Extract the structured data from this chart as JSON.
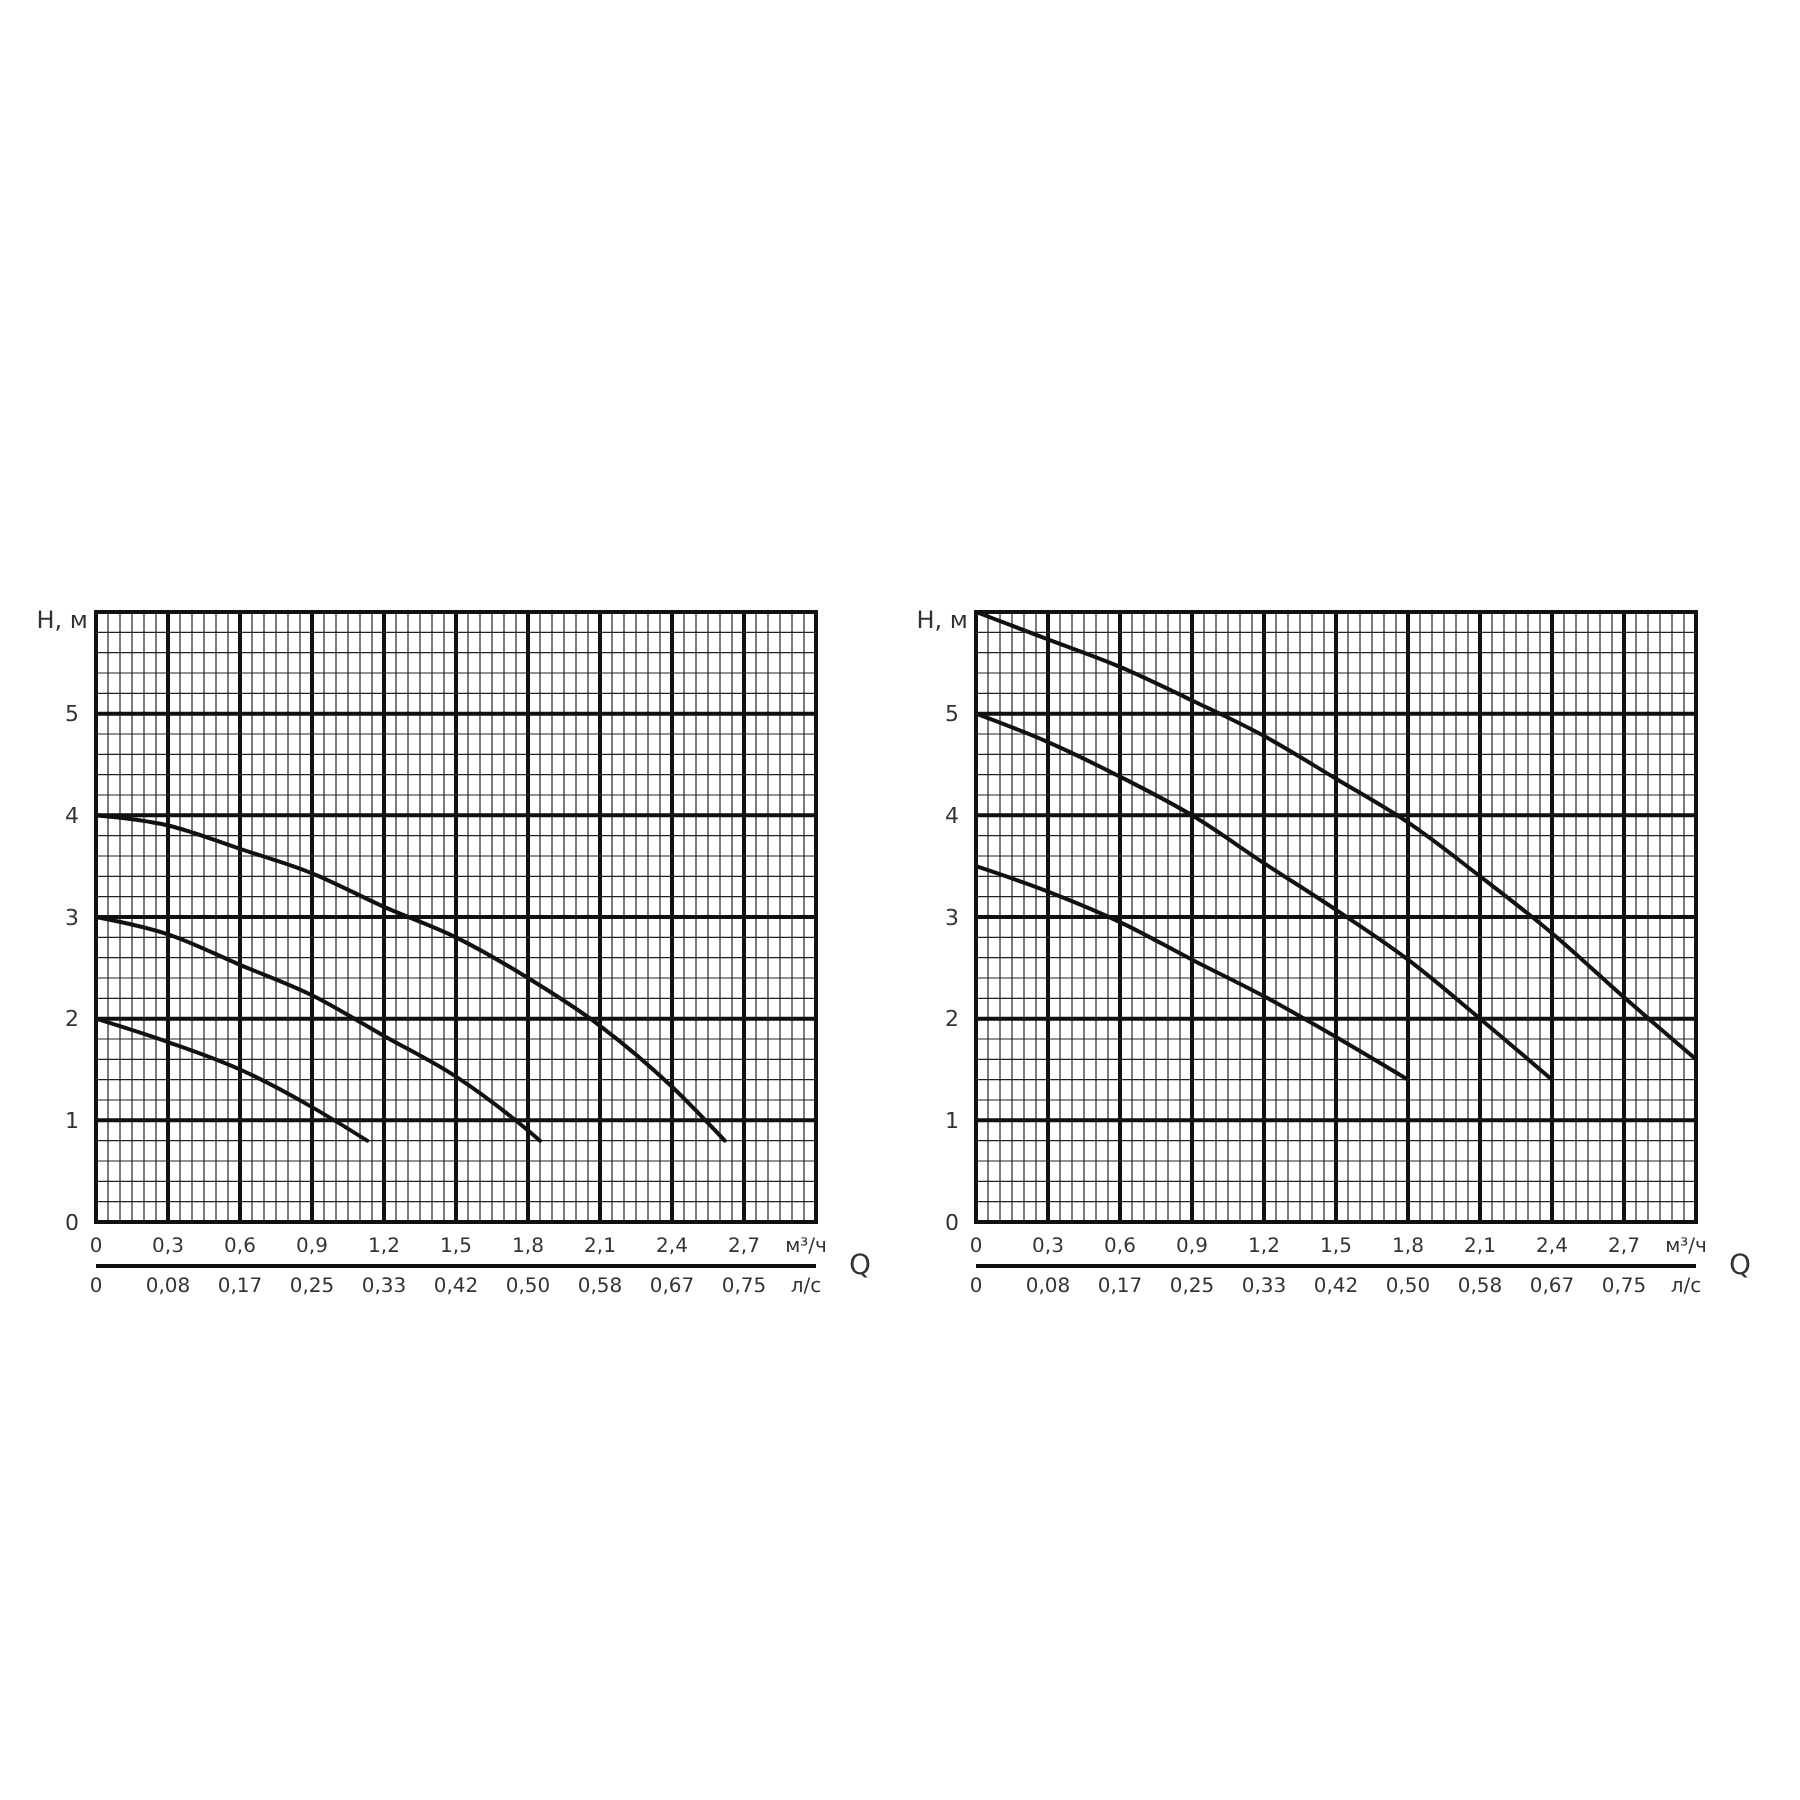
{
  "chart_data": [
    {
      "type": "line",
      "xlabel": "м³/ч",
      "x2label": "л/с",
      "ylabel": "H, м",
      "annotations": [
        "Q"
      ],
      "xlim": [
        0,
        3
      ],
      "xticks": [
        0,
        {
          "value": 0.3,
          "label": "0,3"
        },
        {
          "value": 0.6,
          "label": "0,6"
        },
        {
          "value": 0.9,
          "label": "0,9"
        },
        {
          "value": 1.2,
          "label": "1,2"
        },
        {
          "value": 1.5,
          "label": "1,5"
        },
        {
          "value": 1.8,
          "label": "1,8"
        },
        {
          "value": 2.1,
          "label": "2,1"
        },
        {
          "value": 2.4,
          "label": "2,4"
        },
        {
          "value": 2.7,
          "label": "2,7"
        },
        {
          "value": 3,
          "label": null
        }
      ],
      "x2lim": [
        0,
        0.8333
      ],
      "x2ticks": [
        0,
        {
          "value": 0.0833,
          "label": "0,08"
        },
        {
          "value": 0.1667,
          "label": "0,17"
        },
        {
          "value": 0.25,
          "label": "0,25"
        },
        {
          "value": 0.3333,
          "label": "0,33"
        },
        {
          "value": 0.4167,
          "label": "0,42"
        },
        {
          "value": 0.5,
          "label": "0,50"
        },
        {
          "value": 0.5833,
          "label": "0,58"
        },
        {
          "value": 0.6667,
          "label": "0,67"
        },
        {
          "value": 0.75,
          "label": "0,75"
        }
      ],
      "ylim": [
        0,
        6
      ],
      "yticks": [
        0,
        1,
        2,
        3,
        4,
        5,
        {
          "value": 6,
          "label": null
        }
      ],
      "grid": true,
      "series": [
        {
          "color": "#111111",
          "x": [
            0,
            0.3,
            0.6,
            0.9,
            1.2,
            1.5,
            1.8,
            2.1,
            2.4,
            2.62
          ],
          "values": [
            4,
            3.9,
            3.67,
            3.43,
            3.1,
            2.8,
            2.4,
            1.93,
            1.33,
            0.8
          ]
        },
        {
          "color": "#111111",
          "x": [
            0,
            0.3,
            0.6,
            0.9,
            1.2,
            1.5,
            1.8,
            1.85
          ],
          "values": [
            3,
            2.83,
            2.53,
            2.23,
            1.83,
            1.43,
            0.9,
            0.8
          ]
        },
        {
          "color": "#111111",
          "x": [
            0,
            0.3,
            0.6,
            0.9,
            1.13
          ],
          "values": [
            2,
            1.77,
            1.5,
            1.13,
            0.8
          ]
        }
      ]
    },
    {
      "type": "line",
      "xlabel": "м³/ч",
      "x2label": "л/с",
      "ylabel": "H, м",
      "annotations": [
        "Q"
      ],
      "xlim": [
        0,
        3
      ],
      "xticks": [
        0,
        {
          "value": 0.3,
          "label": "0,3"
        },
        {
          "value": 0.6,
          "label": "0,6"
        },
        {
          "value": 0.9,
          "label": "0,9"
        },
        {
          "value": 1.2,
          "label": "1,2"
        },
        {
          "value": 1.5,
          "label": "1,5"
        },
        {
          "value": 1.8,
          "label": "1,8"
        },
        {
          "value": 2.1,
          "label": "2,1"
        },
        {
          "value": 2.4,
          "label": "2,4"
        },
        {
          "value": 2.7,
          "label": "2,7"
        },
        {
          "value": 3,
          "label": null
        }
      ],
      "x2lim": [
        0,
        0.8333
      ],
      "x2ticks": [
        0,
        {
          "value": 0.0833,
          "label": "0,08"
        },
        {
          "value": 0.1667,
          "label": "0,17"
        },
        {
          "value": 0.25,
          "label": "0,25"
        },
        {
          "value": 0.3333,
          "label": "0,33"
        },
        {
          "value": 0.4167,
          "label": "0,42"
        },
        {
          "value": 0.5,
          "label": "0,50"
        },
        {
          "value": 0.5833,
          "label": "0,58"
        },
        {
          "value": 0.6667,
          "label": "0,67"
        },
        {
          "value": 0.75,
          "label": "0,75"
        }
      ],
      "ylim": [
        0,
        6
      ],
      "yticks": [
        0,
        1,
        2,
        3,
        4,
        5,
        {
          "value": 6,
          "label": null
        }
      ],
      "grid": true,
      "series": [
        {
          "color": "#111111",
          "x": [
            0,
            0.3,
            0.6,
            0.9,
            1.2,
            1.5,
            1.8,
            2.1,
            2.4,
            2.7,
            3.0
          ],
          "values": [
            6.0,
            5.73,
            5.46,
            5.13,
            4.78,
            4.36,
            3.93,
            3.4,
            2.84,
            2.21,
            1.6
          ]
        },
        {
          "color": "#111111",
          "x": [
            0,
            0.3,
            0.6,
            0.9,
            1.2,
            1.5,
            1.8,
            2.1,
            2.4
          ],
          "values": [
            5,
            4.72,
            4.38,
            4.0,
            3.53,
            3.07,
            2.58,
            2.0,
            1.4
          ]
        },
        {
          "color": "#111111",
          "x": [
            0,
            0.3,
            0.6,
            0.9,
            1.2,
            1.5,
            1.8
          ],
          "values": [
            3.5,
            3.25,
            2.95,
            2.58,
            2.22,
            1.82,
            1.4
          ]
        }
      ]
    }
  ]
}
